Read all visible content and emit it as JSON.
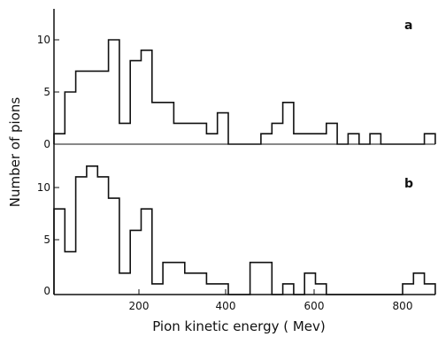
{
  "chart_data": [
    {
      "type": "histogram",
      "panel_label": "a",
      "x_bin_edges": [
        0,
        25,
        50,
        75,
        100,
        125,
        150,
        175,
        200,
        225,
        250,
        275,
        300,
        325,
        350,
        375,
        400,
        425,
        450,
        475,
        500,
        525,
        550,
        575,
        600,
        625,
        650,
        675,
        700,
        725,
        750,
        775,
        800,
        825,
        850,
        875
      ],
      "values": [
        1,
        5,
        7,
        7,
        7,
        10,
        2,
        8,
        9,
        4,
        4,
        2,
        2,
        2,
        1,
        3,
        0,
        0,
        0,
        1,
        2,
        4,
        1,
        1,
        1,
        2,
        0,
        1,
        0,
        1,
        0,
        0,
        0,
        0,
        1
      ],
      "ylim": [
        0,
        12
      ],
      "yticks": [
        "0",
        "5",
        "10"
      ]
    },
    {
      "type": "histogram",
      "panel_label": "b",
      "x_bin_edges": [
        0,
        25,
        50,
        75,
        100,
        125,
        150,
        175,
        200,
        225,
        250,
        275,
        300,
        325,
        350,
        375,
        400,
        425,
        450,
        475,
        500,
        525,
        550,
        575,
        600,
        625,
        650,
        675,
        700,
        725,
        750,
        775,
        800,
        825,
        850,
        875
      ],
      "values": [
        8,
        4,
        11,
        12,
        11,
        9,
        2,
        6,
        8,
        1,
        3,
        3,
        2,
        2,
        1,
        1,
        0,
        0,
        3,
        3,
        0,
        1,
        0,
        2,
        1,
        0,
        0,
        0,
        0,
        0,
        0,
        0,
        1,
        2,
        1
      ],
      "ylim": [
        0,
        12
      ],
      "yticks": [
        "0",
        "5",
        "10"
      ]
    }
  ],
  "axes": {
    "xlabel": "Pion kinetic energy ( Mev)",
    "ylabel": "Number of pions",
    "xlim": [
      0,
      880
    ],
    "xticks": [
      "200",
      "400",
      "600",
      "800"
    ]
  }
}
